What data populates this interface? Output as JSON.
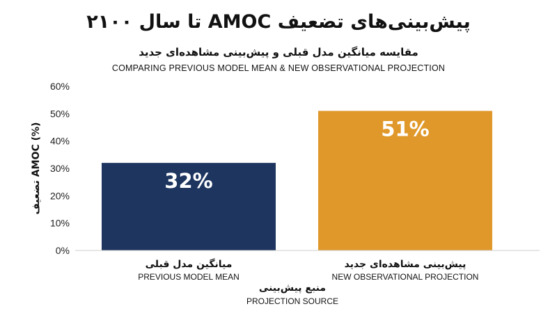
{
  "chart_data": {
    "type": "bar",
    "title": "پیش‌بینی‌های تضعیف AMOC تا سال ۲۱۰۰",
    "subtitle_fa": "مقایسه میانگین مدل قبلی و پیش‌بینی مشاهده‌ای جدید",
    "subtitle_en": "COMPARING PREVIOUS MODEL MEAN & NEW OBSERVATIONAL PROJECTION",
    "ylabel": "تضعیف AMOC (%)",
    "xlabel_fa": "منبع پیش‌بینی",
    "xlabel_en": "PROJECTION SOURCE",
    "ylim": [
      0,
      60
    ],
    "yticks": [
      0,
      10,
      20,
      30,
      40,
      50,
      60
    ],
    "ytick_labels": [
      "0%",
      "10%",
      "20%",
      "30%",
      "40%",
      "50%",
      "60%"
    ],
    "categories": [
      {
        "fa": "میانگین مدل قبلی",
        "en": "PREVIOUS MODEL MEAN"
      },
      {
        "fa": "پیش‌بینی مشاهده‌ای جدید",
        "en": "NEW OBSERVATIONAL PROJECTION"
      }
    ],
    "values": [
      32,
      51
    ],
    "value_labels": [
      "32%",
      "51%"
    ],
    "colors": [
      "#1d355f",
      "#e0982a"
    ],
    "grid": false,
    "legend": "none"
  }
}
